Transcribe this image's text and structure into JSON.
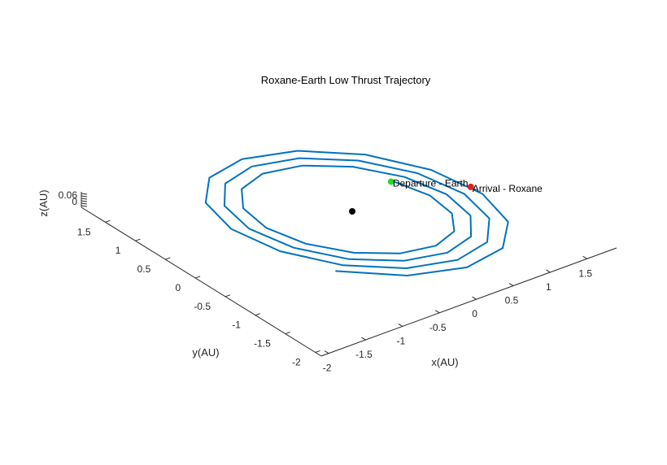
{
  "chart_data": {
    "type": "line3d",
    "title": "Roxane-Earth Low Thrust Trajectory",
    "xlabel": "x(AU)",
    "ylabel": "y(AU)",
    "zlabel": "z(AU)",
    "x_ticks": [
      "-2",
      "-1.5",
      "-1",
      "-0.5",
      "0",
      "0.5",
      "1",
      "1.5"
    ],
    "y_ticks": [
      "-2",
      "-1.5",
      "-1",
      "-0.5",
      "0",
      "0.5",
      "1",
      "1.5"
    ],
    "z_ticks": [
      "0",
      "0.06"
    ],
    "xlim": [
      -2.1,
      1.9
    ],
    "ylim": [
      -2.1,
      1.9
    ],
    "grid": false,
    "series": [
      {
        "name": "",
        "color": "#0072BD",
        "spiral": {
          "turns": 3.45,
          "r_start": 1.0,
          "r_end": 1.62,
          "start_angle_deg": -25
        },
        "note_units": "AU"
      }
    ],
    "markers": [
      {
        "label": "Departure - Earth",
        "x": 0.88,
        "y": -0.42,
        "color": "#22dd22"
      },
      {
        "label": "Arrival - Roxane",
        "x": 1.55,
        "y": 0.02,
        "color": "#e02020"
      },
      {
        "label": "",
        "x": 0,
        "y": 0,
        "color": "#000000"
      }
    ]
  }
}
